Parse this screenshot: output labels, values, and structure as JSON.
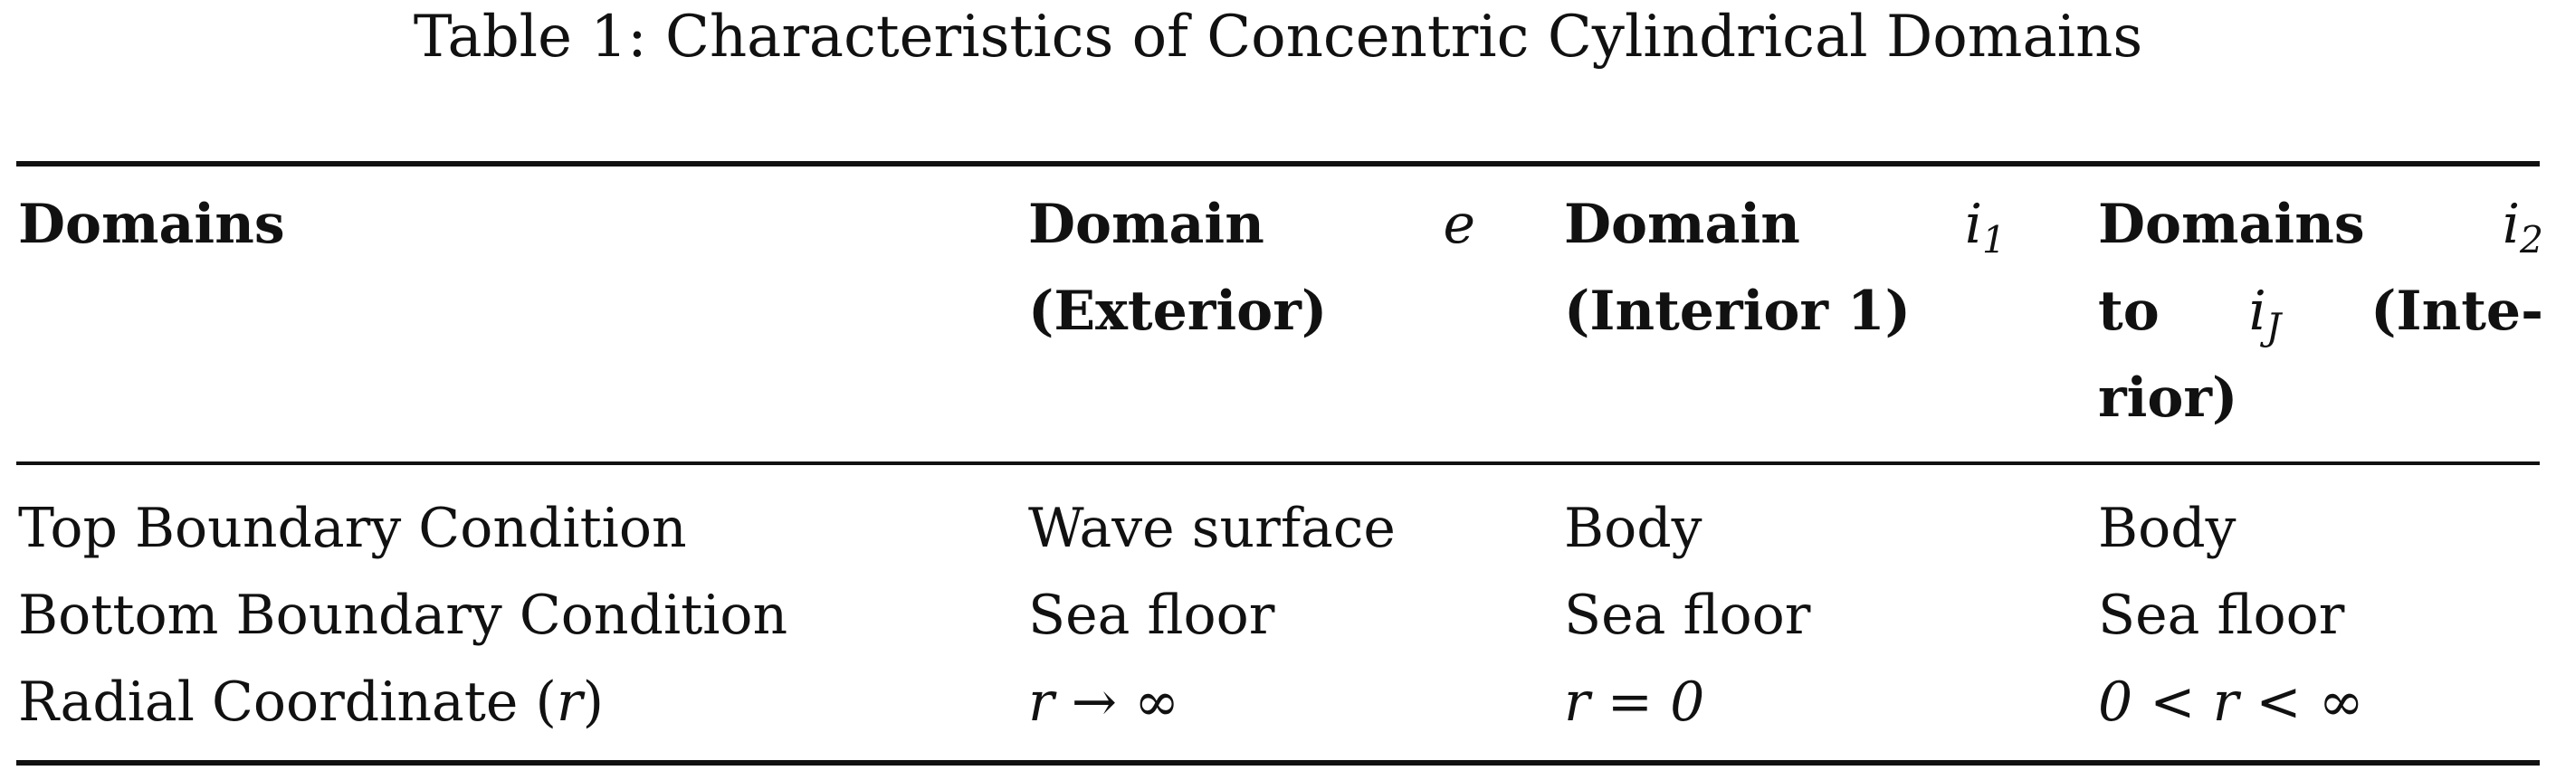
{
  "caption": {
    "label": "Table 1:",
    "title": "Characteristics of Concentric Cylindrical Domains"
  },
  "table": {
    "headers": {
      "domains": "Domains",
      "exterior": {
        "word": "Domain",
        "symbol": "e",
        "note": "(Exterior)"
      },
      "interior1": {
        "word": "Domain",
        "symbol": "i",
        "symbol_sub": "1",
        "note": "(Interior 1)"
      },
      "interiors": {
        "word": "Domains",
        "symbol_start": "i",
        "symbol_start_sub": "2",
        "to": "to",
        "symbol_end": "i",
        "symbol_end_sub": "J",
        "note_part1": "(Inte-",
        "note_part2": "rior)"
      }
    },
    "rows": [
      {
        "label": "Top Boundary Condition",
        "exterior": "Wave surface",
        "interior1": "Body",
        "interiors": "Body"
      },
      {
        "label": "Bottom Boundary Condition",
        "exterior": "Sea floor",
        "interior1": "Sea floor",
        "interiors": "Sea floor"
      },
      {
        "label": "Radial Coordinate",
        "label_symbol": "r",
        "exterior": "r → ∞",
        "interior1": "r = 0",
        "interiors": "0 < r < ∞"
      }
    ]
  }
}
